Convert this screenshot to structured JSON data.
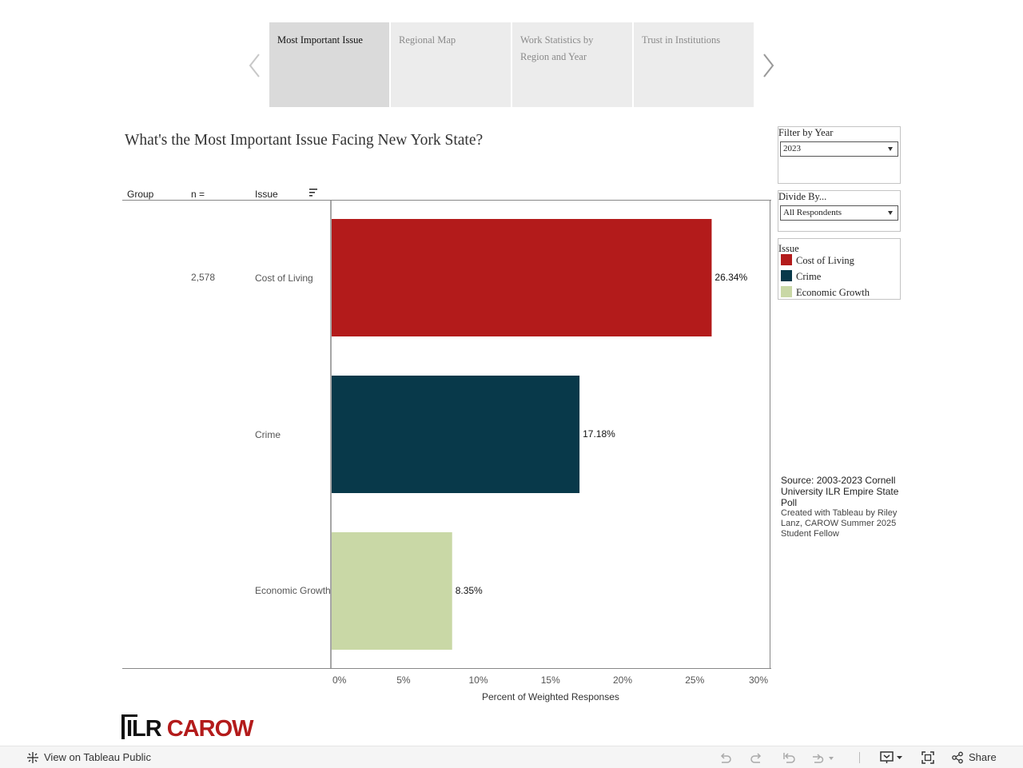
{
  "story_tabs": [
    {
      "label": "Most Important Issue",
      "active": true
    },
    {
      "label": "Regional Map",
      "active": false
    },
    {
      "label": "Work Statistics by Region and Year",
      "active": false
    },
    {
      "label": "Trust in Institutions",
      "active": false
    }
  ],
  "nav": {
    "prev_icon": "chevron-left-icon",
    "next_icon": "chevron-right-icon"
  },
  "title": "What's the Most Important Issue Facing New York State?",
  "table_headers": {
    "group": "Group",
    "n": "n =",
    "issue": "Issue",
    "sort_icon": "sort-icon"
  },
  "n_value": "2,578",
  "chart_data": {
    "type": "bar",
    "orientation": "horizontal",
    "categories": [
      "Cost of Living",
      "Crime",
      "Economic Growth"
    ],
    "values": [
      26.34,
      17.18,
      8.35
    ],
    "data_labels": [
      "26.34%",
      "17.18%",
      "8.35%"
    ],
    "colors": [
      "#b31b1b",
      "#08394a",
      "#c9d8a6"
    ],
    "xlabel": "Percent of Weighted Responses",
    "xticks": [
      "0%",
      "5%",
      "10%",
      "15%",
      "20%",
      "25%",
      "30%"
    ],
    "xlim": [
      0,
      30
    ],
    "grid": false
  },
  "filters": {
    "year": {
      "title": "Filter by Year",
      "value": "2023"
    },
    "divide": {
      "title": "Divide By...",
      "value": "All Respondents"
    }
  },
  "legend": {
    "title": "Issue",
    "items": [
      {
        "label": "Cost of Living",
        "color": "#b31b1b"
      },
      {
        "label": "Crime",
        "color": "#08394a"
      },
      {
        "label": "Economic Growth",
        "color": "#c9d8a6"
      }
    ]
  },
  "source": {
    "line1": "Source: 2003-2023 Cornell University ILR Empire State Poll",
    "line2": "Created with Tableau by Riley Lanz, CAROW Summer 2025 Student Fellow"
  },
  "logo": {
    "part1": "ILR",
    "part2": "CAROW"
  },
  "toolbar": {
    "view_label": "View on Tableau Public",
    "share_label": "Share"
  }
}
